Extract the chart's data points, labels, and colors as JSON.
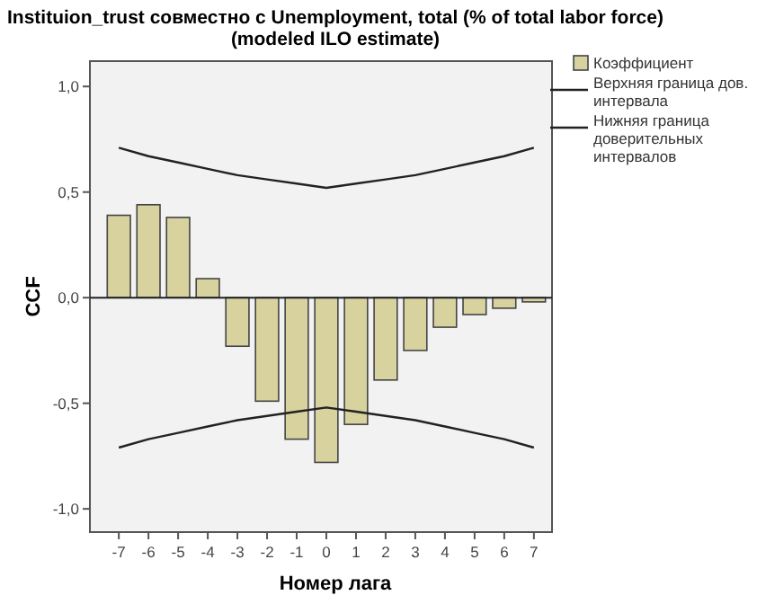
{
  "chart_data": {
    "type": "bar",
    "title": "Instituion_trust совместно с Unemployment, total (% of total labor force)\n(modeled ILO estimate)",
    "xlabel": "Номер лага",
    "ylabel": "CCF",
    "categories": [
      "-7",
      "-6",
      "-5",
      "-4",
      "-3",
      "-2",
      "-1",
      "0",
      "1",
      "2",
      "3",
      "4",
      "5",
      "6",
      "7"
    ],
    "series": [
      {
        "name": "Коэффициент",
        "color": "#d8d29e",
        "values": [
          0.39,
          0.44,
          0.38,
          0.09,
          -0.23,
          -0.49,
          -0.67,
          -0.78,
          -0.6,
          -0.39,
          -0.25,
          -0.14,
          -0.08,
          -0.05,
          -0.02
        ]
      },
      {
        "name": "Верхняя граница дов. интервала",
        "type": "line",
        "color": "#222222",
        "values": [
          0.71,
          0.67,
          0.64,
          0.61,
          0.58,
          0.56,
          0.54,
          0.52,
          0.54,
          0.56,
          0.58,
          0.61,
          0.64,
          0.67,
          0.71
        ]
      },
      {
        "name": "Нижняя граница доверительных интервалов",
        "type": "line",
        "color": "#222222",
        "values": [
          -0.71,
          -0.67,
          -0.64,
          -0.61,
          -0.58,
          -0.56,
          -0.54,
          -0.52,
          -0.54,
          -0.56,
          -0.58,
          -0.61,
          -0.64,
          -0.67,
          -0.71
        ]
      }
    ],
    "ylim": [
      -1.11,
      1.12
    ],
    "yticks": [
      {
        "value": 1,
        "label": "1,0"
      },
      {
        "value": 0.5,
        "label": "0,5"
      },
      {
        "value": 0,
        "label": "0,0"
      },
      {
        "value": -0.5,
        "label": "-0,5"
      },
      {
        "value": -1,
        "label": "-1,0"
      }
    ],
    "legend": "right",
    "marker": "none",
    "line_style": "solid"
  }
}
